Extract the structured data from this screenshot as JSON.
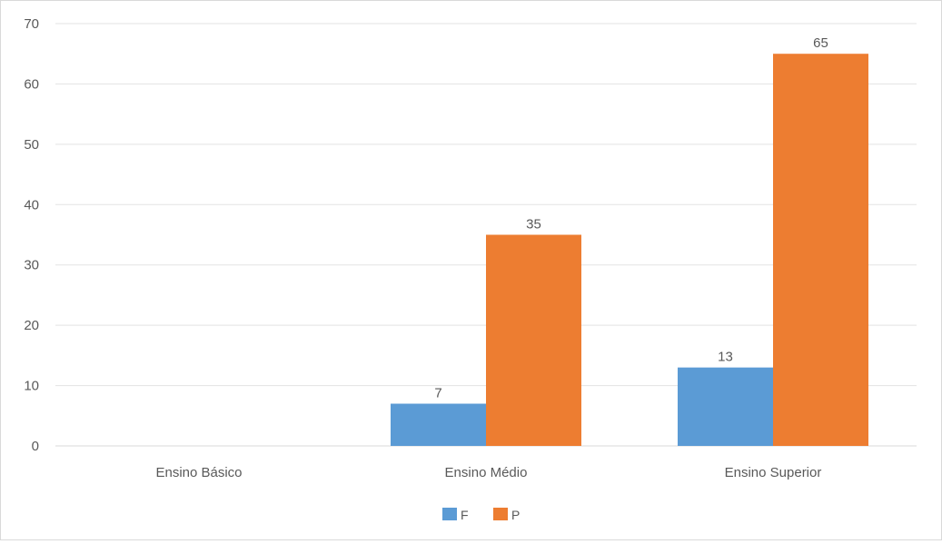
{
  "chart_data": {
    "type": "bar",
    "categories": [
      "Ensino Básico",
      "Ensino Médio",
      "Ensino Superior"
    ],
    "series": [
      {
        "name": "F",
        "values": [
          null,
          7,
          13
        ],
        "color": "#5b9bd5"
      },
      {
        "name": "P",
        "values": [
          null,
          35,
          65
        ],
        "color": "#ed7d31"
      }
    ],
    "ylim": [
      0,
      70
    ],
    "yticks": [
      0,
      10,
      20,
      30,
      40,
      50,
      60,
      70
    ],
    "grid": true,
    "data_labels": true,
    "legend_position": "bottom"
  }
}
